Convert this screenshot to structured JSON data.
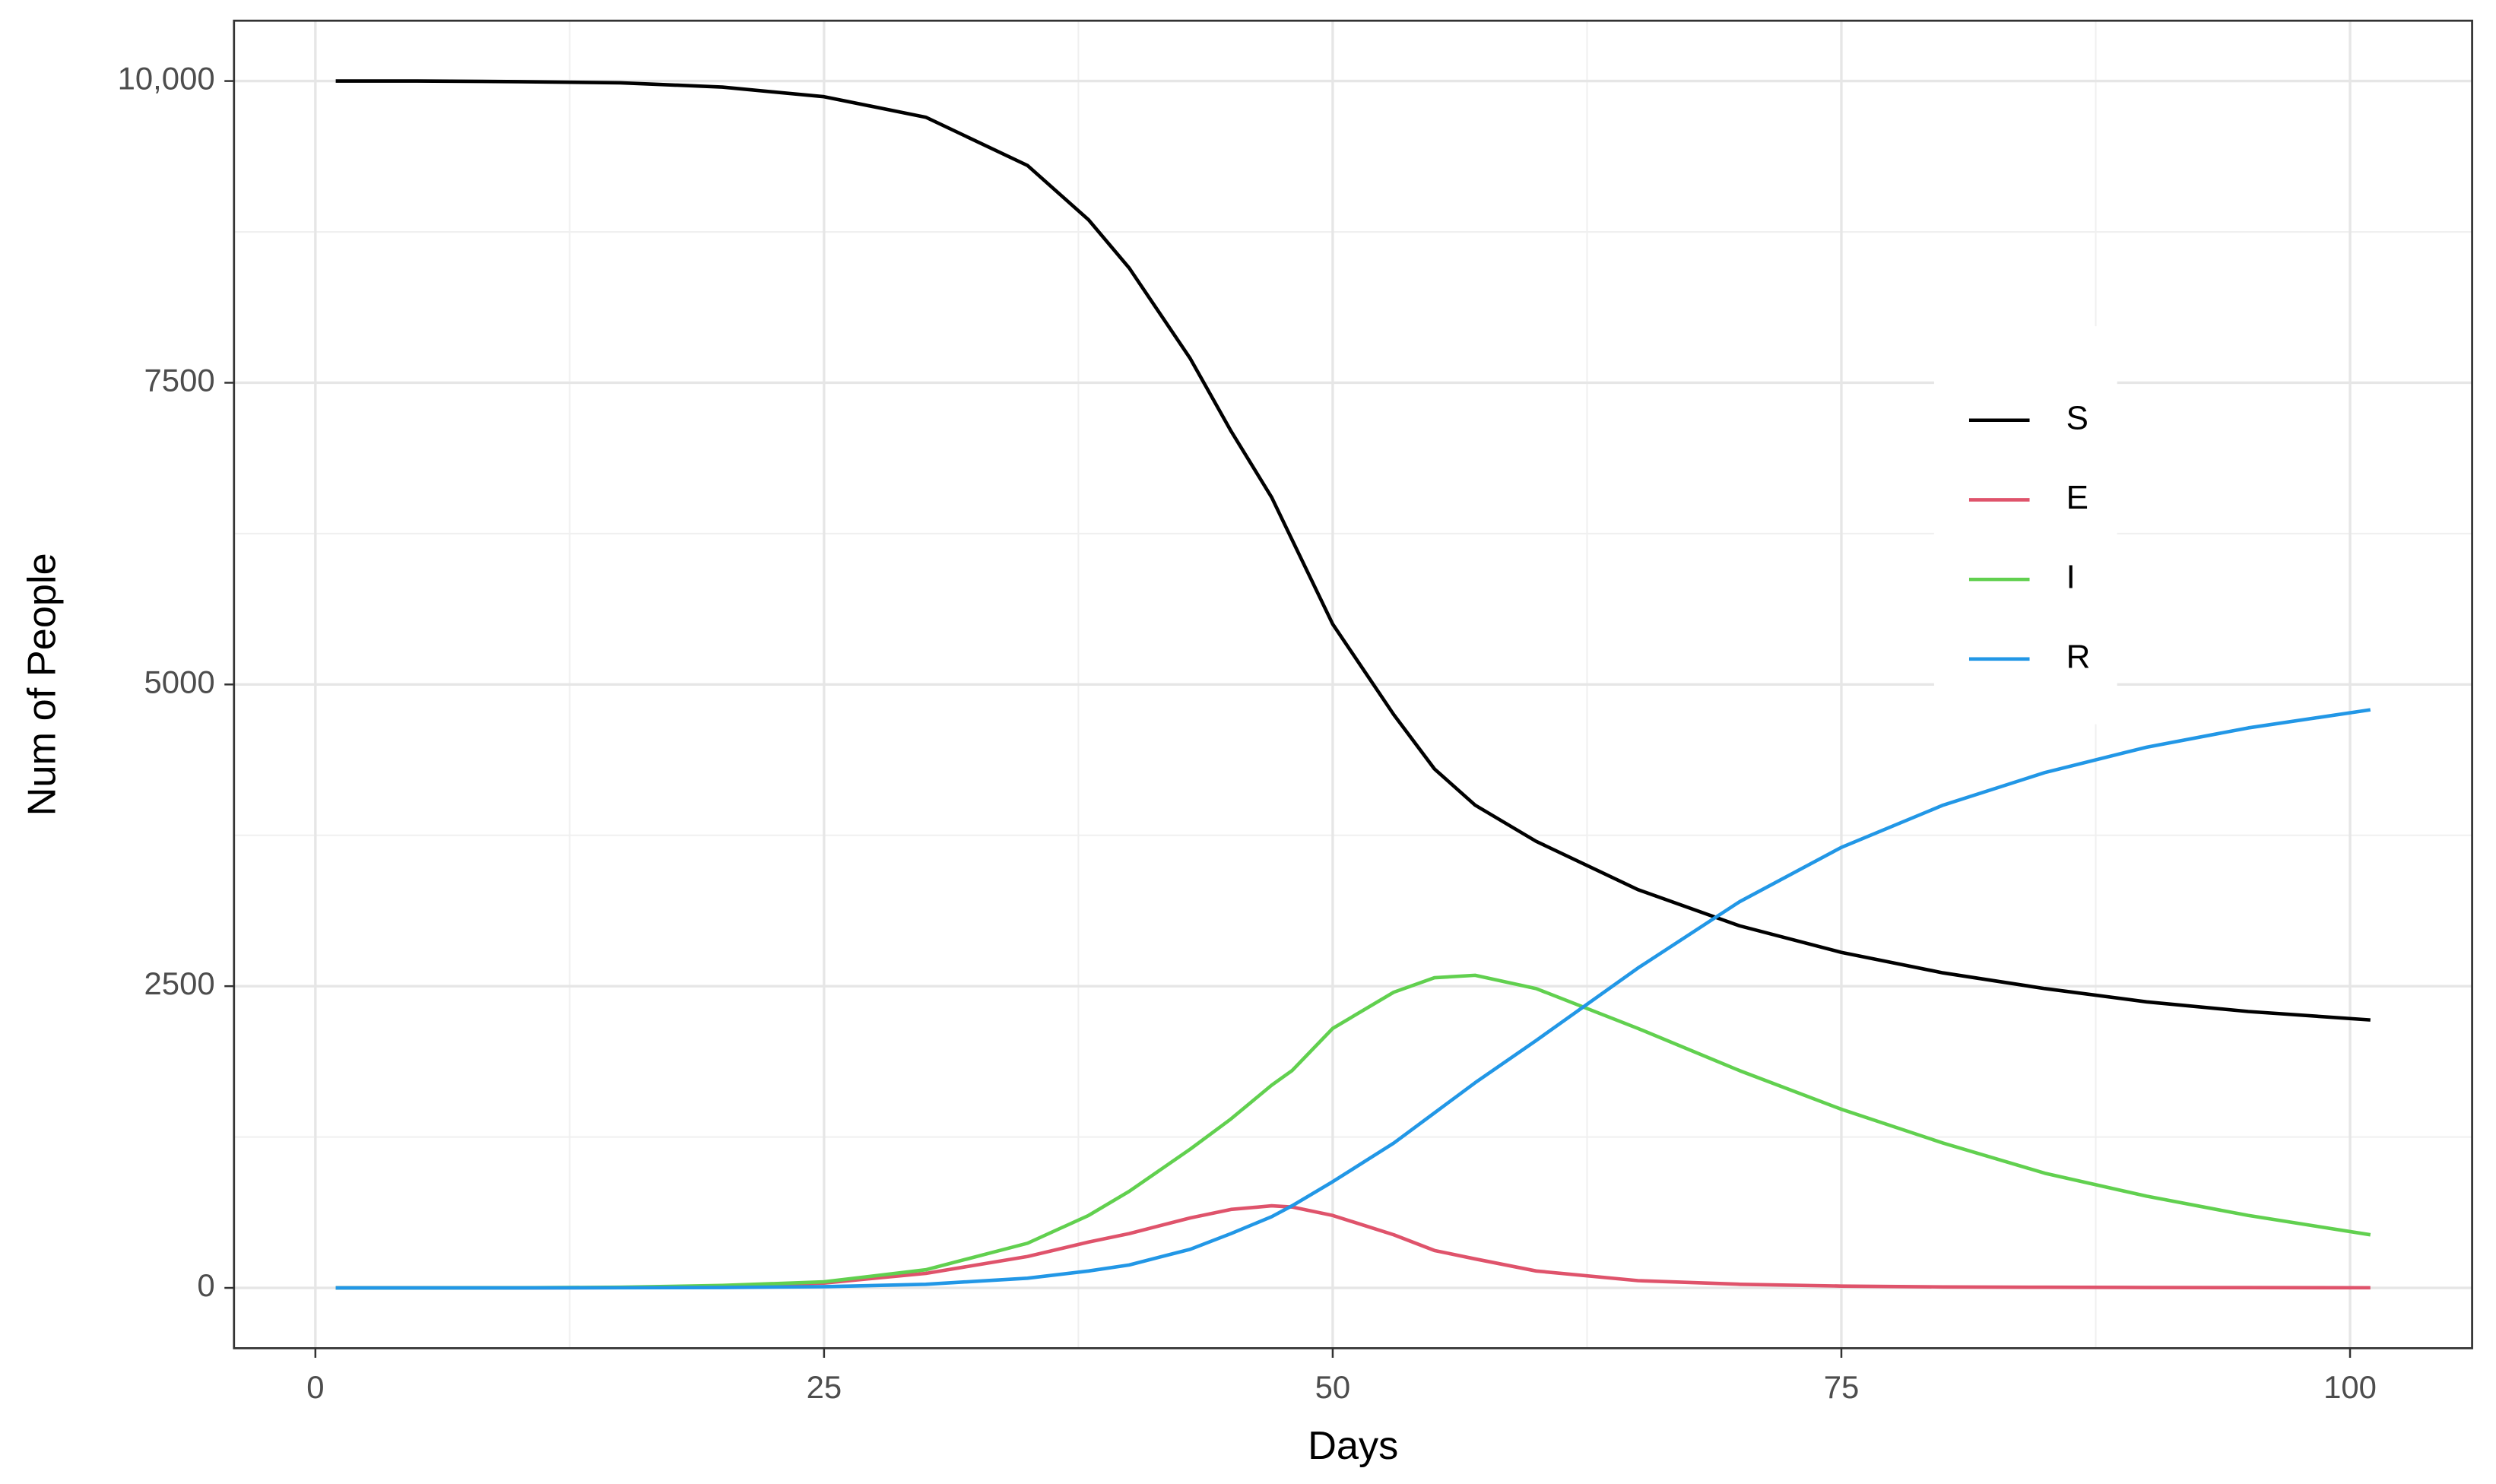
{
  "chart_data": {
    "type": "line",
    "x_label": "Days",
    "y_label": "Num of People",
    "x": [
      1,
      5,
      10,
      15,
      20,
      25,
      30,
      35,
      38,
      40,
      43,
      45,
      47,
      48,
      50,
      53,
      55,
      57,
      60,
      65,
      70,
      75,
      80,
      85,
      90,
      95,
      101
    ],
    "series": [
      {
        "name": "S",
        "color": "#000000",
        "values": [
          10000,
          10000,
          9995,
          9985,
          9950,
          9870,
          9700,
          9300,
          8850,
          8450,
          7700,
          7100,
          6550,
          6200,
          5500,
          4750,
          4300,
          4000,
          3700,
          3300,
          3000,
          2780,
          2610,
          2480,
          2370,
          2290,
          2220
        ]
      },
      {
        "name": "E",
        "color": "#df536b",
        "values": [
          0,
          0,
          0,
          2,
          15,
          40,
          120,
          260,
          380,
          450,
          580,
          650,
          680,
          670,
          600,
          440,
          310,
          240,
          140,
          60,
          30,
          15,
          8,
          5,
          3,
          2,
          1
        ]
      },
      {
        "name": "I",
        "color": "#61d04f",
        "values": [
          0,
          0,
          1,
          5,
          20,
          50,
          150,
          370,
          600,
          800,
          1150,
          1400,
          1680,
          1800,
          2150,
          2450,
          2570,
          2590,
          2480,
          2150,
          1800,
          1480,
          1200,
          950,
          760,
          600,
          440
        ]
      },
      {
        "name": "R",
        "color": "#2297e6",
        "values": [
          0,
          0,
          0,
          1,
          3,
          10,
          30,
          80,
          140,
          190,
          320,
          450,
          590,
          680,
          880,
          1200,
          1450,
          1700,
          2050,
          2650,
          3200,
          3650,
          4000,
          4270,
          4480,
          4640,
          4790
        ]
      }
    ],
    "xlim": [
      -4,
      106
    ],
    "xticks": [
      0,
      25,
      50,
      75,
      100
    ],
    "ylim": [
      -500,
      10500
    ],
    "yticks": [
      0,
      2500,
      5000,
      7500,
      {
        "value": 10000,
        "label": "10,000"
      }
    ],
    "x_minor_grid": [
      12.5,
      37.5,
      62.5,
      87.5
    ],
    "y_minor_grid": [
      1250,
      3750,
      6250,
      8750
    ],
    "grid": true,
    "legend": "right"
  }
}
